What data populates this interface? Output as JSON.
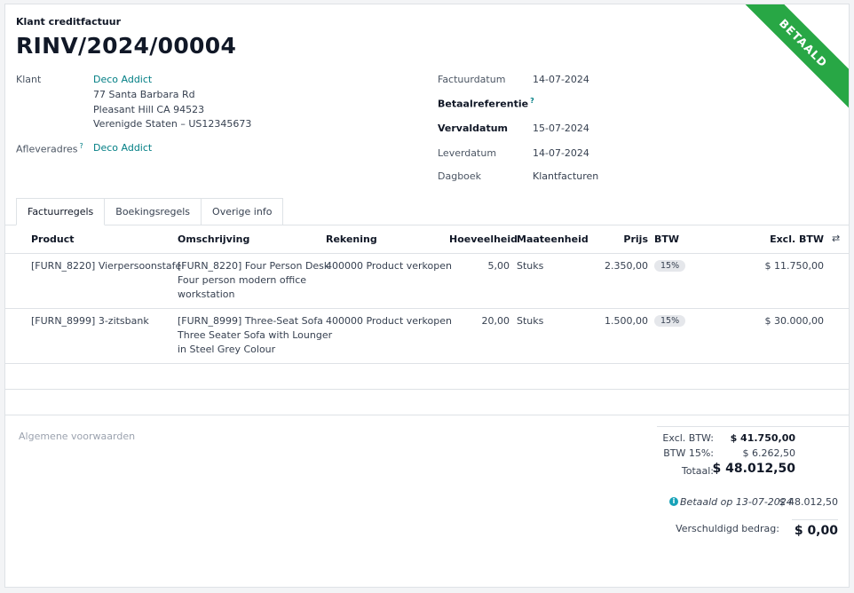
{
  "header": {
    "doc_type": "Klant creditfactuur",
    "title": "RINV/2024/00004",
    "ribbon": "BETAALD"
  },
  "fields_left": {
    "customer_label": "Klant",
    "customer_name": "Deco Addict",
    "address_lines": [
      "77 Santa Barbara Rd",
      "Pleasant Hill CA 94523",
      "Verenigde Staten – US12345673"
    ],
    "delivery_label": "Afleveradres",
    "delivery_help": "?",
    "delivery_name": "Deco Addict"
  },
  "fields_right": {
    "invoice_date_label": "Factuurdatum",
    "invoice_date": "14-07-2024",
    "payment_ref_label": "Betaalreferentie",
    "payment_ref_help": "?",
    "due_date_label": "Vervaldatum",
    "due_date": "15-07-2024",
    "delivery_date_label": "Leverdatum",
    "delivery_date": "14-07-2024",
    "journal_label": "Dagboek",
    "journal": "Klantfacturen"
  },
  "tabs": [
    "Factuurregels",
    "Boekingsregels",
    "Overige info"
  ],
  "table": {
    "headers": {
      "product": "Product",
      "description": "Omschrijving",
      "account": "Rekening",
      "quantity": "Hoeveelheid",
      "uom": "Maateenheid",
      "price": "Prijs",
      "tax": "BTW",
      "subtotal": "Excl. BTW"
    },
    "rows": [
      {
        "product": "[FURN_8220] Vierpersoonstafel",
        "desc": [
          "[FURN_8220] Four Person Desk",
          "Four person modern office",
          "workstation"
        ],
        "account": "400000 Product verkopen",
        "quantity": "5,00",
        "uom": "Stuks",
        "price": "2.350,00",
        "tax": "15%",
        "subtotal": "$ 11.750,00"
      },
      {
        "product": "[FURN_8999] 3-zitsbank",
        "desc": [
          "[FURN_8999] Three-Seat Sofa",
          "Three Seater Sofa with Lounger",
          "in Steel Grey Colour"
        ],
        "account": "400000 Product verkopen",
        "quantity": "20,00",
        "uom": "Stuks",
        "price": "1.500,00",
        "tax": "15%",
        "subtotal": "$ 30.000,00"
      }
    ]
  },
  "terms_placeholder": "Algemene voorwaarden",
  "totals": {
    "untaxed_label": "Excl. BTW:",
    "untaxed": "$ 41.750,00",
    "tax_label": "BTW 15%:",
    "tax": "$ 6.262,50",
    "total_label": "Totaal:",
    "total": "$ 48.012,50",
    "payment_label": "Betaald op 13-07-2024",
    "payment_amount": "$ 48.012,50",
    "residual_label": "Verschuldigd bedrag:",
    "residual": "$ 0,00"
  },
  "colors": {
    "paid_ribbon": "#28a745",
    "link": "#017e84",
    "info": "#17a2b8"
  },
  "icons": [
    "info-icon",
    "column-settings-icon"
  ]
}
